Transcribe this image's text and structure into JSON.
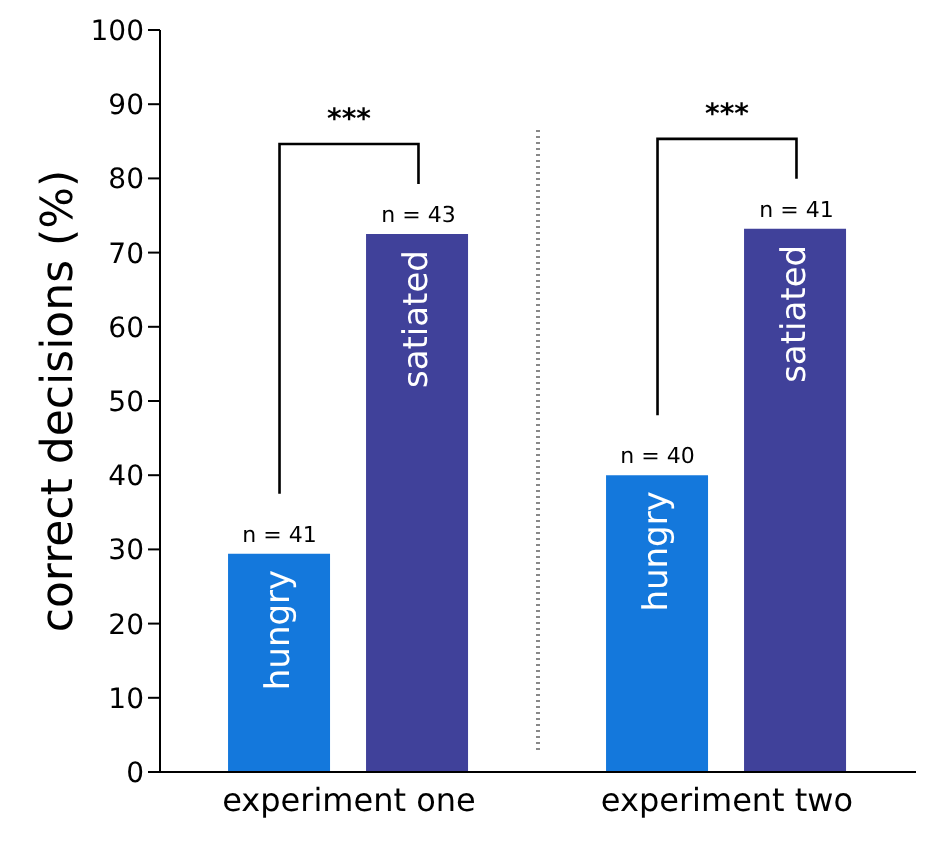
{
  "chart_data": {
    "type": "bar",
    "ylabel": "correct decisions (%)",
    "categories": [
      "experiment one",
      "experiment two"
    ],
    "series": [
      {
        "name": "hungry",
        "color": "#1478dc",
        "values": [
          29.4,
          40
        ]
      },
      {
        "name": "satiated",
        "color": "#40419a",
        "values": [
          72.5,
          73.2
        ]
      }
    ],
    "ylim": [
      0,
      100
    ],
    "yticks": [
      0,
      10,
      20,
      30,
      40,
      50,
      60,
      70,
      80,
      90,
      100
    ],
    "grid": false,
    "legend": false,
    "annotations": [
      "***",
      "***",
      "n = 41",
      "n = 43",
      "n = 40",
      "n = 41"
    ]
  }
}
